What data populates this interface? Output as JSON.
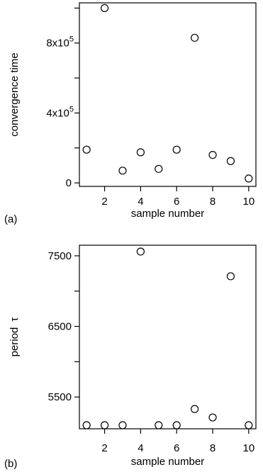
{
  "chart_data": [
    {
      "type": "scatter",
      "panel_label": "(a)",
      "xlabel": "sample number",
      "ylabel": "convergence time",
      "x": [
        1,
        2,
        3,
        4,
        5,
        6,
        7,
        8,
        9,
        10
      ],
      "y": [
        190000,
        1000000,
        70000,
        175000,
        80000,
        190000,
        830000,
        160000,
        125000,
        25000
      ],
      "xlim": [
        0.6,
        10.4
      ],
      "ylim": [
        -20000,
        1030000
      ],
      "x_ticks": [
        {
          "v": 2,
          "label": "2"
        },
        {
          "v": 4,
          "label": "4"
        },
        {
          "v": 6,
          "label": "6"
        },
        {
          "v": 8,
          "label": "8"
        },
        {
          "v": 10,
          "label": "10"
        }
      ],
      "y_ticks": [
        {
          "v": 0,
          "base": "0",
          "exp": ""
        },
        {
          "v": 200000,
          "base": "",
          "exp": ""
        },
        {
          "v": 400000,
          "base": "4x10",
          "exp": "5"
        },
        {
          "v": 600000,
          "base": "",
          "exp": ""
        },
        {
          "v": 800000,
          "base": "8x10",
          "exp": "5"
        },
        {
          "v": 1000000,
          "base": "",
          "exp": ""
        }
      ],
      "marker": "open-circle",
      "grid": false
    },
    {
      "type": "scatter",
      "panel_label": "(b)",
      "xlabel": "sample number",
      "ylabel": "period",
      "ylabel_symbol": "τ",
      "x": [
        1,
        2,
        3,
        4,
        5,
        6,
        7,
        8,
        9,
        10
      ],
      "y": [
        5100,
        5100,
        5100,
        7560,
        5100,
        5100,
        5330,
        5210,
        7210,
        5100
      ],
      "xlim": [
        0.6,
        10.4
      ],
      "ylim": [
        5050,
        7650
      ],
      "x_ticks": [
        {
          "v": 2,
          "label": "2"
        },
        {
          "v": 4,
          "label": "4"
        },
        {
          "v": 6,
          "label": "6"
        },
        {
          "v": 8,
          "label": "8"
        },
        {
          "v": 10,
          "label": "10"
        }
      ],
      "y_ticks": [
        {
          "v": 5500,
          "base": "5500",
          "exp": ""
        },
        {
          "v": 6000,
          "base": "",
          "exp": ""
        },
        {
          "v": 6500,
          "base": "6500",
          "exp": ""
        },
        {
          "v": 7000,
          "base": "",
          "exp": ""
        },
        {
          "v": 7500,
          "base": "7500",
          "exp": ""
        }
      ],
      "marker": "open-circle",
      "grid": false
    }
  ]
}
